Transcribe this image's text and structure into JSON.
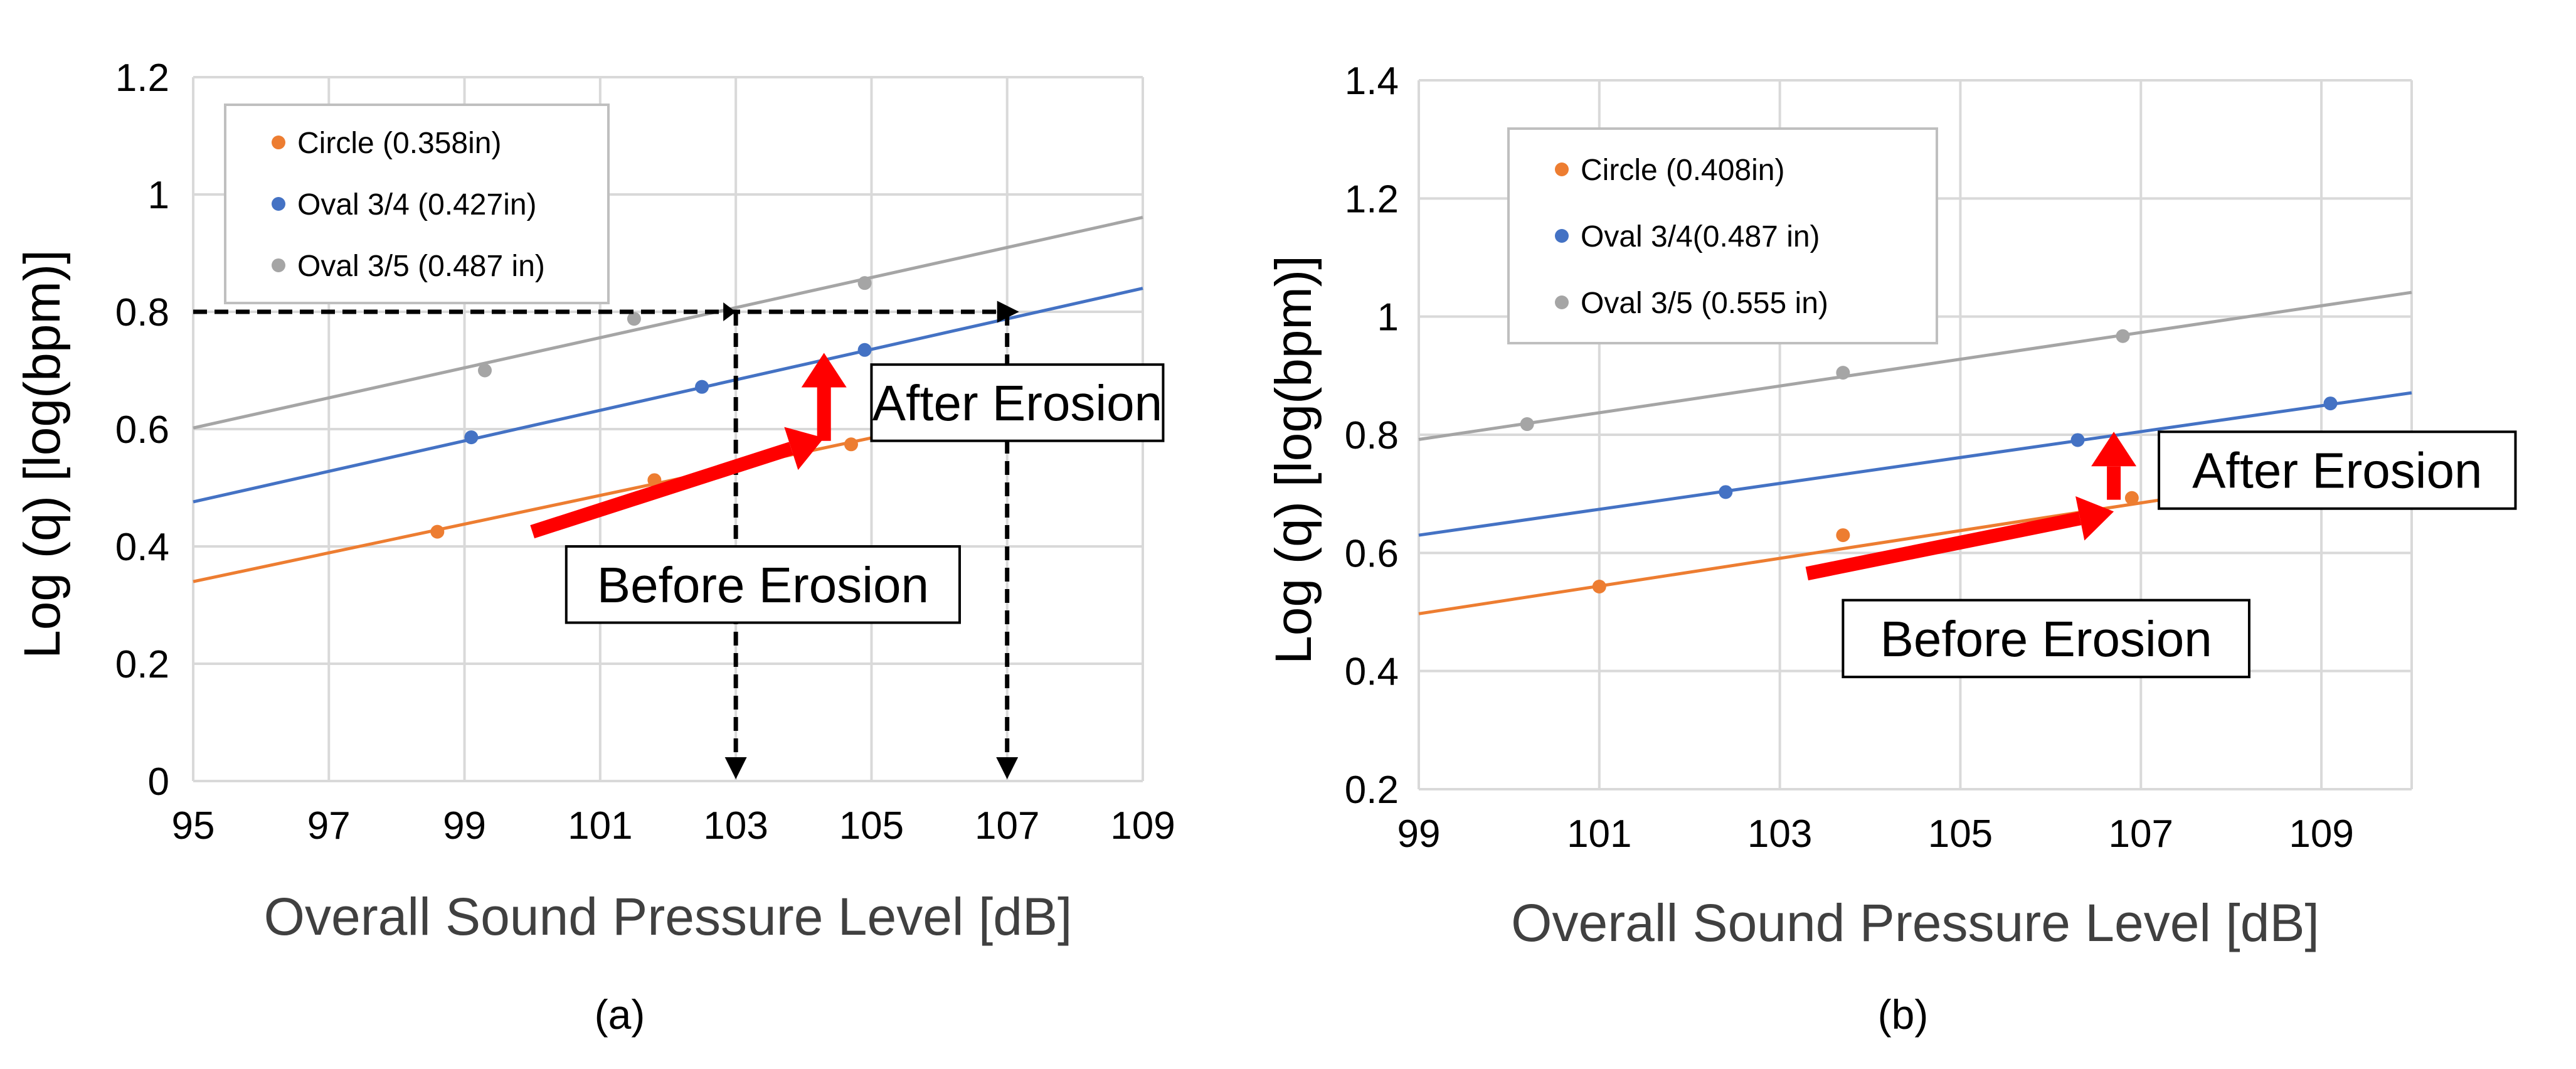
{
  "chart_data": [
    {
      "type": "scatter",
      "caption": "(a)",
      "xlabel": "Overall Sound Pressure Level [dB]",
      "ylabel": "Log (q)  [log(bpm)]",
      "xlim": [
        95,
        109
      ],
      "ylim": [
        0,
        1.2
      ],
      "xticks": [
        "95",
        "97",
        "99",
        "101",
        "103",
        "105",
        "107",
        "109"
      ],
      "yticks": [
        "0",
        "0.2",
        "0.4",
        "0.6",
        "0.8",
        "1",
        "1.2"
      ],
      "grid": true,
      "legend_position": "top-left",
      "series": [
        {
          "name": "Circle (0.358in)",
          "color": "#ED7D31",
          "x": [
            98.6,
            101.8,
            104.7
          ],
          "y": [
            0.425,
            0.513,
            0.574
          ],
          "trendline": [
            [
              95,
              0.34
            ],
            [
              109,
              0.683
            ]
          ]
        },
        {
          "name": "Oval 3/4 (0.427in)",
          "color": "#4472C4",
          "x": [
            99.1,
            102.5,
            104.9
          ],
          "y": [
            0.586,
            0.672,
            0.735
          ],
          "trendline": [
            [
              95,
              0.476
            ],
            [
              109,
              0.84
            ]
          ]
        },
        {
          "name": "Oval 3/5 (0.487 in)",
          "color": "#A5A5A5",
          "x": [
            99.3,
            101.5,
            104.9
          ],
          "y": [
            0.7,
            0.788,
            0.849
          ],
          "trendline": [
            [
              95,
              0.602
            ],
            [
              109,
              0.961
            ]
          ]
        }
      ],
      "annotations": {
        "after": "After Erosion",
        "before": "Before Erosion",
        "reference_y": 0.8,
        "reference_x": [
          103,
          107
        ]
      }
    },
    {
      "type": "scatter",
      "caption": "(b)",
      "xlabel": "Overall Sound Pressure Level [dB]",
      "ylabel": "Log (q)  [log(bpm)]",
      "xlim": [
        99,
        110
      ],
      "ylim": [
        0.2,
        1.4
      ],
      "xticks": [
        "99",
        "101",
        "103",
        "105",
        "107",
        "109"
      ],
      "yticks": [
        "0.2",
        "0.4",
        "0.6",
        "0.8",
        "1",
        "1.2",
        "1.4"
      ],
      "grid": true,
      "legend_position": "top-left",
      "series": [
        {
          "name": "Circle (0.408in)",
          "color": "#ED7D31",
          "x": [
            101.0,
            103.7,
            106.9
          ],
          "y": [
            0.543,
            0.63,
            0.693
          ],
          "trendline": [
            [
              99,
              0.497
            ],
            [
              110,
              0.755
            ]
          ]
        },
        {
          "name": "Oval 3/4(0.487 in)",
          "color": "#4472C4",
          "x": [
            102.4,
            106.3,
            109.1
          ],
          "y": [
            0.703,
            0.791,
            0.853
          ],
          "trendline": [
            [
              99,
              0.63
            ],
            [
              110,
              0.871
            ]
          ]
        },
        {
          "name": "Oval 3/5 (0.555 in)",
          "color": "#A5A5A5",
          "x": [
            100.2,
            103.7,
            106.8
          ],
          "y": [
            0.818,
            0.905,
            0.967
          ],
          "trendline": [
            [
              99,
              0.792
            ],
            [
              110,
              1.041
            ]
          ]
        }
      ],
      "annotations": {
        "after": "After Erosion",
        "before": "Before Erosion"
      }
    }
  ]
}
